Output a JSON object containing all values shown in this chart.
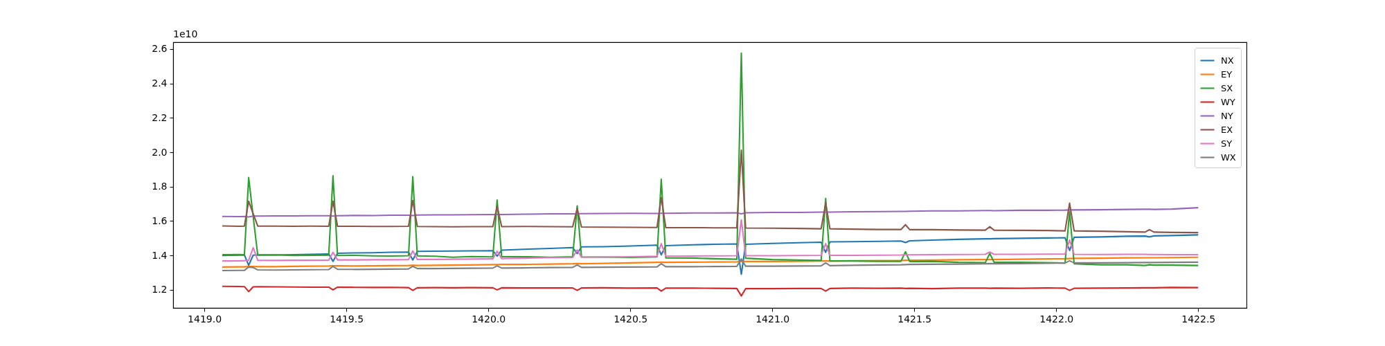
{
  "chart_data": {
    "type": "line",
    "annotations": [
      "1e10"
    ],
    "legend": "top right",
    "xlim": [
      1418.89,
      1422.67
    ],
    "ylim": [
      1.095,
      2.64
    ],
    "xticks": [
      {
        "value": 1419,
        "label": "1419.0"
      },
      1419.5,
      {
        "value": 1420,
        "label": "1420.0"
      },
      1420.5,
      {
        "value": 1421,
        "label": "1421.0"
      },
      1421.5,
      {
        "value": 1422,
        "label": "1422.0"
      },
      1422.5
    ],
    "yticks": [
      1.2,
      1.4,
      1.6,
      1.8,
      {
        "value": 2,
        "label": "2.0"
      },
      2.2,
      2.4,
      2.6
    ],
    "x": [
      1419.063,
      1419.125,
      1419.141,
      1419.156,
      1419.172,
      1419.188,
      1419.25,
      1419.313,
      1419.375,
      1419.438,
      1419.453,
      1419.469,
      1419.531,
      1419.594,
      1419.656,
      1419.719,
      1419.734,
      1419.75,
      1419.813,
      1419.875,
      1419.938,
      1420.016,
      1420.031,
      1420.047,
      1420.125,
      1420.219,
      1420.297,
      1420.313,
      1420.328,
      1420.406,
      1420.5,
      1420.594,
      1420.609,
      1420.625,
      1420.719,
      1420.797,
      1420.875,
      1420.891,
      1420.906,
      1421.0,
      1421.094,
      1421.172,
      1421.188,
      1421.203,
      1421.281,
      1421.375,
      1421.453,
      1421.469,
      1421.484,
      1421.563,
      1421.656,
      1421.75,
      1421.766,
      1421.781,
      1421.875,
      1421.969,
      1422.031,
      1422.047,
      1422.063,
      1422.156,
      1422.25,
      1422.313,
      1422.328,
      1422.344,
      1422.406,
      1422.5
    ],
    "series": [
      {
        "name": "NX",
        "color": "#1f77b4",
        "values": [
          1.4,
          1.402,
          1.403,
          1.343,
          1.402,
          1.404,
          1.403,
          1.405,
          1.407,
          1.409,
          1.366,
          1.413,
          1.415,
          1.416,
          1.419,
          1.42,
          1.374,
          1.424,
          1.425,
          1.426,
          1.427,
          1.428,
          1.396,
          1.431,
          1.436,
          1.441,
          1.446,
          1.411,
          1.45,
          1.451,
          1.455,
          1.46,
          1.404,
          1.457,
          1.462,
          1.465,
          1.467,
          1.291,
          1.465,
          1.47,
          1.474,
          1.477,
          1.418,
          1.479,
          1.48,
          1.482,
          1.484,
          1.475,
          1.485,
          1.489,
          1.494,
          1.497,
          1.497,
          1.498,
          1.5,
          1.502,
          1.503,
          1.429,
          1.506,
          1.508,
          1.512,
          1.513,
          1.508,
          1.514,
          1.516,
          1.52
        ]
      },
      {
        "name": "EY",
        "color": "#ff7f0e",
        "values": [
          1.333,
          1.334,
          1.334,
          1.336,
          1.336,
          1.335,
          1.335,
          1.337,
          1.338,
          1.339,
          1.34,
          1.34,
          1.339,
          1.34,
          1.341,
          1.342,
          1.343,
          1.342,
          1.343,
          1.344,
          1.345,
          1.347,
          1.347,
          1.348,
          1.348,
          1.35,
          1.352,
          1.353,
          1.352,
          1.354,
          1.357,
          1.36,
          1.361,
          1.36,
          1.361,
          1.362,
          1.363,
          1.366,
          1.365,
          1.365,
          1.366,
          1.368,
          1.368,
          1.368,
          1.369,
          1.37,
          1.371,
          1.372,
          1.372,
          1.373,
          1.375,
          1.376,
          1.376,
          1.376,
          1.378,
          1.38,
          1.381,
          1.382,
          1.383,
          1.384,
          1.386,
          1.387,
          1.387,
          1.387,
          1.388,
          1.39
        ]
      },
      {
        "name": "SX",
        "color": "#2ca02c",
        "values": [
          1.405,
          1.406,
          1.404,
          1.853,
          1.625,
          1.402,
          1.404,
          1.4,
          1.401,
          1.402,
          1.863,
          1.4,
          1.401,
          1.398,
          1.397,
          1.399,
          1.858,
          1.398,
          1.396,
          1.39,
          1.394,
          1.392,
          1.722,
          1.393,
          1.393,
          1.39,
          1.393,
          1.688,
          1.392,
          1.391,
          1.389,
          1.392,
          1.843,
          1.386,
          1.385,
          1.381,
          1.378,
          2.576,
          1.384,
          1.376,
          1.373,
          1.371,
          1.731,
          1.368,
          1.368,
          1.366,
          1.366,
          1.422,
          1.365,
          1.366,
          1.36,
          1.358,
          1.412,
          1.36,
          1.36,
          1.358,
          1.356,
          1.655,
          1.352,
          1.346,
          1.346,
          1.342,
          1.346,
          1.344,
          1.344,
          1.342
        ]
      },
      {
        "name": "WY",
        "color": "#d62728",
        "values": [
          1.221,
          1.22,
          1.219,
          1.19,
          1.218,
          1.219,
          1.218,
          1.217,
          1.216,
          1.216,
          1.2,
          1.216,
          1.215,
          1.214,
          1.215,
          1.213,
          1.197,
          1.212,
          1.213,
          1.212,
          1.213,
          1.212,
          1.2,
          1.212,
          1.211,
          1.211,
          1.211,
          1.197,
          1.211,
          1.212,
          1.21,
          1.211,
          1.193,
          1.21,
          1.21,
          1.209,
          1.208,
          1.165,
          1.207,
          1.207,
          1.208,
          1.208,
          1.193,
          1.208,
          1.21,
          1.209,
          1.21,
          1.208,
          1.209,
          1.207,
          1.21,
          1.21,
          1.209,
          1.21,
          1.209,
          1.211,
          1.21,
          1.197,
          1.209,
          1.21,
          1.211,
          1.212,
          1.212,
          1.212,
          1.214,
          1.213
        ]
      },
      {
        "name": "NY",
        "color": "#9467bd",
        "values": [
          1.627,
          1.626,
          1.627,
          1.624,
          1.629,
          1.629,
          1.63,
          1.63,
          1.631,
          1.631,
          1.629,
          1.631,
          1.633,
          1.632,
          1.634,
          1.634,
          1.632,
          1.635,
          1.636,
          1.636,
          1.637,
          1.638,
          1.638,
          1.638,
          1.64,
          1.642,
          1.642,
          1.643,
          1.643,
          1.644,
          1.645,
          1.644,
          1.645,
          1.645,
          1.647,
          1.647,
          1.648,
          1.642,
          1.648,
          1.65,
          1.65,
          1.652,
          1.652,
          1.652,
          1.654,
          1.655,
          1.656,
          1.656,
          1.657,
          1.659,
          1.659,
          1.661,
          1.661,
          1.66,
          1.663,
          1.663,
          1.664,
          1.665,
          1.665,
          1.666,
          1.668,
          1.669,
          1.669,
          1.668,
          1.67,
          1.678
        ]
      },
      {
        "name": "EX",
        "color": "#8c564b",
        "values": [
          1.572,
          1.57,
          1.571,
          1.715,
          1.643,
          1.571,
          1.571,
          1.57,
          1.571,
          1.57,
          1.715,
          1.57,
          1.57,
          1.569,
          1.569,
          1.57,
          1.719,
          1.569,
          1.568,
          1.567,
          1.568,
          1.568,
          1.687,
          1.568,
          1.569,
          1.568,
          1.567,
          1.673,
          1.566,
          1.565,
          1.564,
          1.563,
          1.736,
          1.562,
          1.562,
          1.561,
          1.561,
          2.012,
          1.56,
          1.559,
          1.557,
          1.555,
          1.705,
          1.555,
          1.553,
          1.551,
          1.551,
          1.579,
          1.55,
          1.55,
          1.548,
          1.547,
          1.567,
          1.547,
          1.546,
          1.545,
          1.543,
          1.704,
          1.543,
          1.541,
          1.538,
          1.536,
          1.55,
          1.536,
          1.534,
          1.533
        ]
      },
      {
        "name": "SY",
        "color": "#e377c2",
        "values": [
          1.368,
          1.369,
          1.37,
          1.372,
          1.446,
          1.372,
          1.371,
          1.372,
          1.372,
          1.373,
          1.418,
          1.374,
          1.374,
          1.375,
          1.375,
          1.376,
          1.427,
          1.377,
          1.377,
          1.378,
          1.379,
          1.381,
          1.425,
          1.382,
          1.384,
          1.388,
          1.389,
          1.432,
          1.39,
          1.391,
          1.393,
          1.396,
          1.469,
          1.396,
          1.397,
          1.398,
          1.399,
          1.607,
          1.399,
          1.399,
          1.4,
          1.401,
          1.469,
          1.401,
          1.401,
          1.402,
          1.403,
          1.404,
          1.404,
          1.405,
          1.406,
          1.407,
          1.42,
          1.407,
          1.407,
          1.408,
          1.408,
          1.49,
          1.407,
          1.406,
          1.407,
          1.407,
          1.406,
          1.406,
          1.405,
          1.405
        ]
      },
      {
        "name": "WX",
        "color": "#7f7f7f",
        "values": [
          1.312,
          1.313,
          1.313,
          1.333,
          1.33,
          1.316,
          1.315,
          1.316,
          1.317,
          1.318,
          1.337,
          1.32,
          1.319,
          1.32,
          1.321,
          1.322,
          1.337,
          1.324,
          1.324,
          1.325,
          1.326,
          1.327,
          1.34,
          1.327,
          1.328,
          1.33,
          1.331,
          1.345,
          1.331,
          1.332,
          1.333,
          1.334,
          1.352,
          1.335,
          1.335,
          1.336,
          1.337,
          1.38,
          1.338,
          1.338,
          1.339,
          1.34,
          1.357,
          1.341,
          1.343,
          1.345,
          1.346,
          1.347,
          1.348,
          1.349,
          1.35,
          1.352,
          1.353,
          1.352,
          1.353,
          1.355,
          1.356,
          1.369,
          1.357,
          1.357,
          1.358,
          1.359,
          1.359,
          1.359,
          1.36,
          1.361
        ]
      }
    ]
  }
}
